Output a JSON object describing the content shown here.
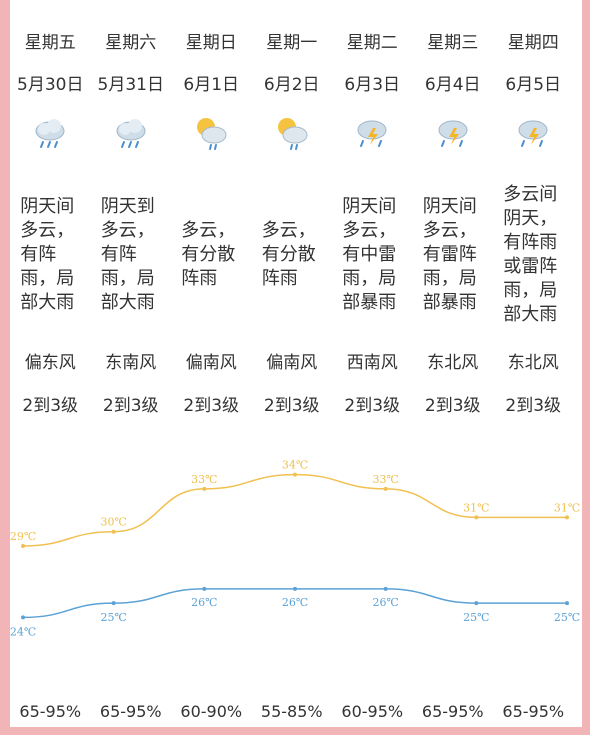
{
  "days": [
    {
      "week": "星期五",
      "date": "5月30日",
      "icon": "cloud-rain-icon",
      "weather": "阴天间多云，有阵雨，局部大雨",
      "wind": "偏东风",
      "level": "2到3级",
      "humidity": "65-95%"
    },
    {
      "week": "星期六",
      "date": "5月31日",
      "icon": "cloud-rain-icon",
      "weather": "阴天到多云，有阵雨，局部大雨",
      "wind": "东南风",
      "level": "2到3级",
      "humidity": "65-95%"
    },
    {
      "week": "星期日",
      "date": "6月1日",
      "icon": "sun-cloud-rain-icon",
      "weather": "多云，有分散阵雨",
      "wind": "偏南风",
      "level": "2到3级",
      "humidity": "60-90%"
    },
    {
      "week": "星期一",
      "date": "6月2日",
      "icon": "sun-cloud-rain-icon",
      "weather": "多云，有分散阵雨",
      "wind": "偏南风",
      "level": "2到3级",
      "humidity": "55-85%"
    },
    {
      "week": "星期二",
      "date": "6月3日",
      "icon": "thunder-rain-icon",
      "weather": "阴天间多云，有中雷雨，局部暴雨",
      "wind": "西南风",
      "level": "2到3级",
      "humidity": "60-95%"
    },
    {
      "week": "星期三",
      "date": "6月4日",
      "icon": "thunder-rain-icon",
      "weather": "阴天间多云，有雷阵雨，局部暴雨",
      "wind": "东北风",
      "level": "2到3级",
      "humidity": "65-95%"
    },
    {
      "week": "星期四",
      "date": "6月5日",
      "icon": "thunder-rain-icon",
      "weather": "多云间阴天，有阵雨或雷阵雨，局部大雨",
      "wind": "东北风",
      "level": "2到3级",
      "humidity": "65-95%"
    }
  ],
  "chart_data": {
    "type": "line",
    "x": [
      "5月30日",
      "5月31日",
      "6月1日",
      "6月2日",
      "6月3日",
      "6月4日",
      "6月5日"
    ],
    "series": [
      {
        "values": [
          29,
          30,
          33,
          34,
          33,
          31,
          31
        ],
        "labels": [
          "29℃",
          "30℃",
          "33℃",
          "34℃",
          "33℃",
          "31℃",
          "31℃"
        ],
        "color": "#f0c050"
      },
      {
        "values": [
          24,
          25,
          26,
          26,
          26,
          25,
          25
        ],
        "labels": [
          "24℃",
          "25℃",
          "26℃",
          "26℃",
          "26℃",
          "25℃",
          "25℃"
        ],
        "color": "#5ba2d6"
      }
    ],
    "ylim": [
      22,
      36
    ]
  },
  "colors": {
    "background": "#f1b5b8",
    "high": "#f0c050",
    "low": "#5ba2d6",
    "text": "#333333"
  }
}
